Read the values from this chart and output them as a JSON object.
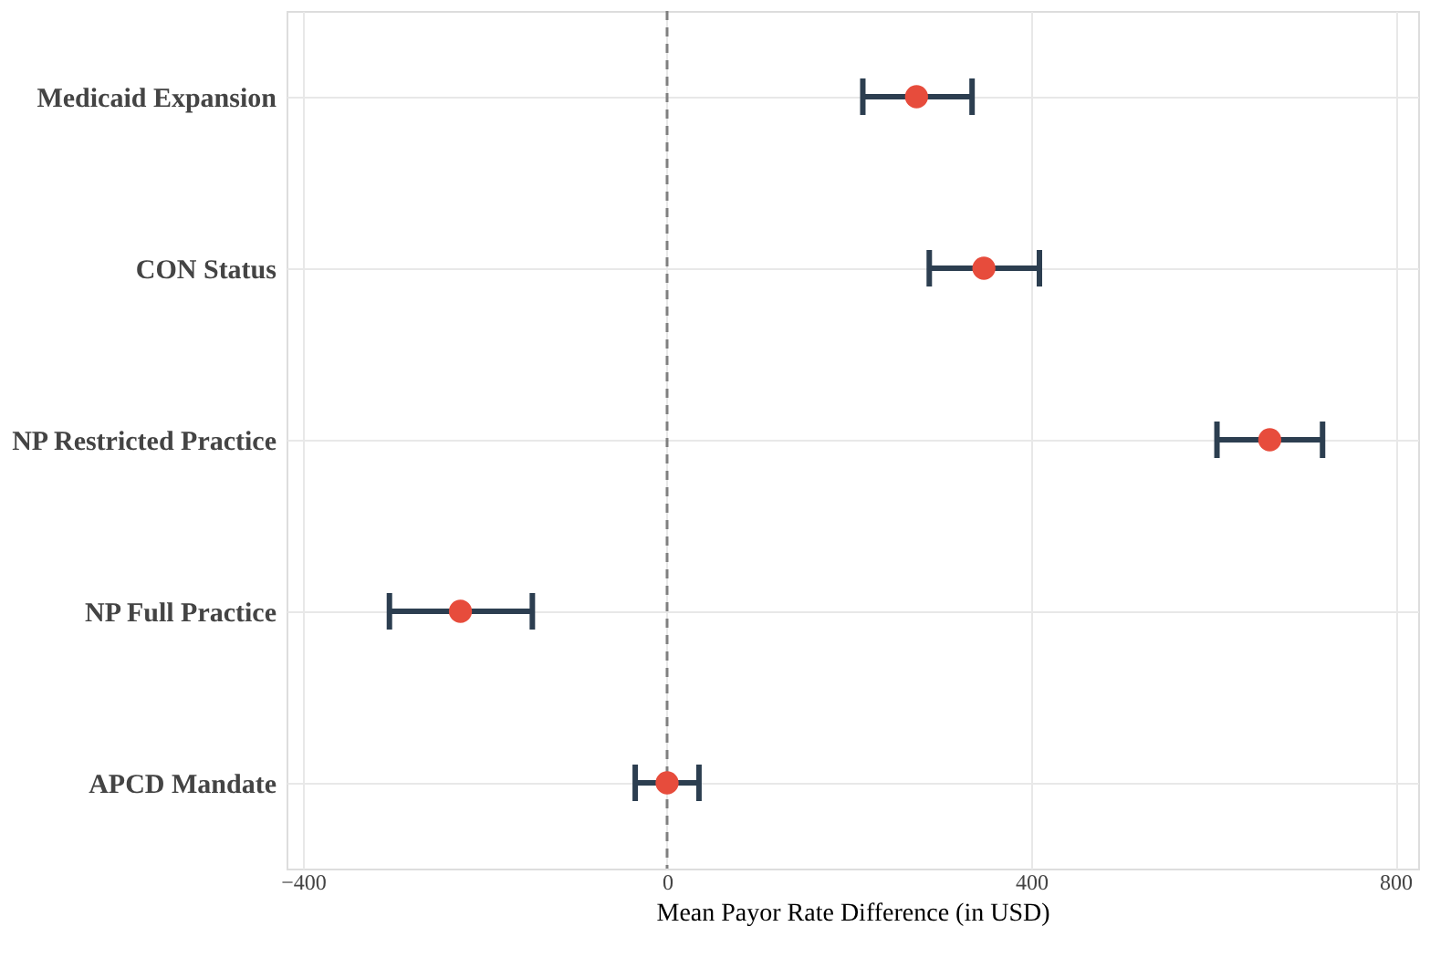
{
  "chart_data": {
    "type": "scatter",
    "xlabel": "Mean Payor Rate Difference (in USD)",
    "categories": [
      "Medicaid Expansion",
      "CON Status",
      "NP Restricted Practice",
      "NP Full Practice",
      "APCD Mandate"
    ],
    "orientation": "horizontal",
    "series": [
      {
        "color": "#e74c3c",
        "values": [
          274,
          348,
          662,
          -227,
          0
        ],
        "errors": [
          [
            215,
            335
          ],
          [
            288,
            409
          ],
          [
            604,
            720
          ],
          [
            -305,
            -148
          ],
          [
            -35,
            35
          ]
        ]
      }
    ],
    "xlim": [
      -418,
      825
    ],
    "xticks": [
      -400,
      0,
      400,
      800
    ],
    "grid": true,
    "marker": "circle",
    "ref_lines": [
      {
        "axis": "x",
        "value": 0,
        "color": "#808080",
        "line_style": "dashed"
      }
    ]
  }
}
